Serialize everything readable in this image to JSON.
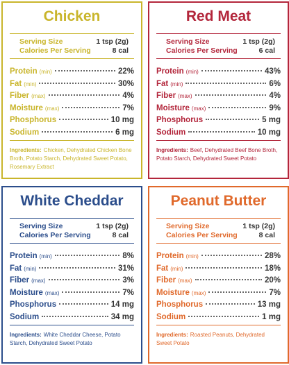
{
  "panels": [
    {
      "title": "Chicken",
      "color": "#c9b52b",
      "serving_label": "Serving Size",
      "serving_value": "1 tsp (2g)",
      "calories_label": "Calories Per Serving",
      "calories_value": "8 cal",
      "rows": [
        {
          "name": "Protein",
          "qualifier": "(min)",
          "value": "22%"
        },
        {
          "name": "Fat",
          "qualifier": "(min)",
          "value": "30%"
        },
        {
          "name": "Fiber",
          "qualifier": "(max)",
          "value": "4%"
        },
        {
          "name": "Moisture",
          "qualifier": "(max)",
          "value": "7%"
        },
        {
          "name": "Phosphorus",
          "value": "10 mg"
        },
        {
          "name": "Sodium",
          "value": "6 mg"
        }
      ],
      "ingredients_label": "Ingredients:",
      "ingredients": "Chicken, Dehydrated Chicken Bone Broth, Potato Starch, Dehydrated Sweet Potato, Rosemary Extract"
    },
    {
      "title": "Red Meat",
      "color": "#b3263b",
      "serving_label": "Serving Size",
      "serving_value": "1 tsp (2g)",
      "calories_label": "Calories Per Serving",
      "calories_value": "6 cal",
      "rows": [
        {
          "name": "Protein",
          "qualifier": "(min)",
          "value": "43%"
        },
        {
          "name": "Fat",
          "qualifier": "(min)",
          "value": "6%"
        },
        {
          "name": "Fiber",
          "qualifier": "(max)",
          "value": "4%"
        },
        {
          "name": "Moisture",
          "qualifier": "(max)",
          "value": "9%"
        },
        {
          "name": "Phosphorus",
          "value": "5 mg"
        },
        {
          "name": "Sodium",
          "value": "10 mg"
        }
      ],
      "ingredients_label": "Ingredients:",
      "ingredients": "Beef, Dehydrated Beef Bone Broth, Potato Starch, Dehydrated Sweet Potato"
    },
    {
      "title": "White Cheddar",
      "color": "#2b4d8b",
      "serving_label": "Serving Size",
      "serving_value": "1 tsp (2g)",
      "calories_label": "Calories Per Serving",
      "calories_value": "8 cal",
      "rows": [
        {
          "name": "Protein",
          "qualifier": "(min)",
          "value": "8%"
        },
        {
          "name": "Fat",
          "qualifier": "(min)",
          "value": "31%"
        },
        {
          "name": "Fiber",
          "qualifier": "(max)",
          "value": "3%"
        },
        {
          "name": "Moisture",
          "qualifier": "(max)",
          "value": "7%"
        },
        {
          "name": "Phosphorus",
          "value": "14 mg"
        },
        {
          "name": "Sodium",
          "value": "34 mg"
        }
      ],
      "ingredients_label": "Ingredients:",
      "ingredients": "White Cheddar Cheese, Potato Starch, Dehydrated Sweet Potato"
    },
    {
      "title": "Peanut Butter",
      "color": "#e0692b",
      "serving_label": "Serving Size",
      "serving_value": "1 tsp (2g)",
      "calories_label": "Calories Per Serving",
      "calories_value": "8 cal",
      "rows": [
        {
          "name": "Protein",
          "qualifier": "(min)",
          "value": "28%"
        },
        {
          "name": "Fat",
          "qualifier": "(min)",
          "value": "18%"
        },
        {
          "name": "Fiber",
          "qualifier": "(max)",
          "value": "20%"
        },
        {
          "name": "Moisture",
          "qualifier": "(max)",
          "value": "7%"
        },
        {
          "name": "Phosphorus",
          "value": "13 mg"
        },
        {
          "name": "Sodium",
          "value": "1 mg"
        }
      ],
      "ingredients_label": "Ingredients:",
      "ingredients": "Roasted Peanuts, Dehydrated Sweet Potato"
    }
  ]
}
